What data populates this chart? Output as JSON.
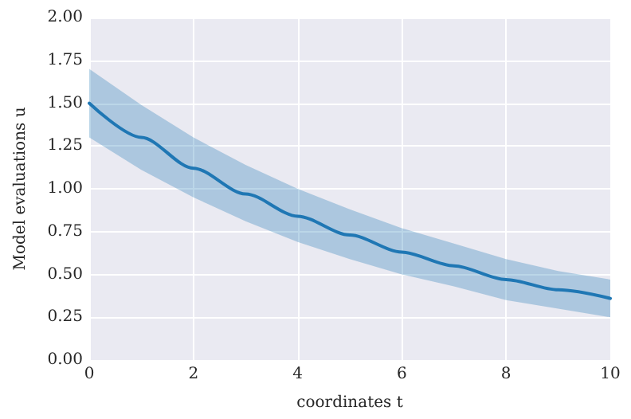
{
  "chart_data": {
    "type": "line",
    "xlabel": "coordinates t",
    "ylabel": "Model evaluations u",
    "x": [
      0,
      1,
      2,
      3,
      4,
      5,
      6,
      7,
      8,
      9,
      10
    ],
    "series": [
      {
        "color": "#1f77b4",
        "values": [
          1.5,
          1.3,
          1.12,
          0.97,
          0.84,
          0.73,
          0.63,
          0.55,
          0.47,
          0.41,
          0.36
        ],
        "lower": [
          1.3,
          1.11,
          0.95,
          0.81,
          0.69,
          0.59,
          0.5,
          0.43,
          0.35,
          0.3,
          0.25
        ],
        "upper": [
          1.7,
          1.49,
          1.3,
          1.14,
          1.0,
          0.88,
          0.77,
          0.68,
          0.59,
          0.52,
          0.47
        ]
      }
    ],
    "xlim": [
      0,
      10
    ],
    "xticks": [
      0,
      2,
      4,
      6,
      8,
      10
    ],
    "ylim": [
      0,
      2
    ],
    "yticks": [
      {
        "value": 0,
        "label": "0.00"
      },
      {
        "value": 0.25,
        "label": "0.25"
      },
      {
        "value": 0.5,
        "label": "0.50"
      },
      {
        "value": 0.75,
        "label": "0.75"
      },
      {
        "value": 1,
        "label": "1.00"
      },
      {
        "value": 1.25,
        "label": "1.25"
      },
      {
        "value": 1.5,
        "label": "1.50"
      },
      {
        "value": 1.75,
        "label": "1.75"
      },
      {
        "value": 2,
        "label": "2.00"
      }
    ],
    "grid": true,
    "marker": "none",
    "line_style": "solid"
  }
}
